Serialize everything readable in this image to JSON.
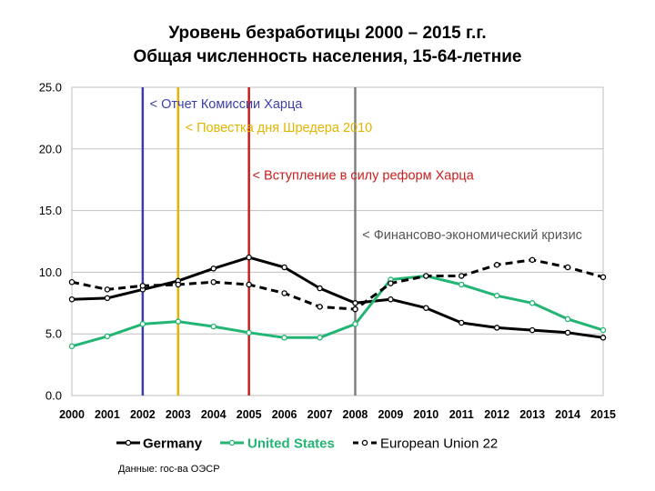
{
  "title_line1": "Уровень безработицы 2000 – 2015 г.г.",
  "title_line2": "Общая  численность населения, 15-64-летние",
  "source": "Данные: гос-ва ОЭСР",
  "chart_data": {
    "type": "line",
    "x": [
      2000,
      2001,
      2002,
      2003,
      2004,
      2005,
      2006,
      2007,
      2008,
      2009,
      2010,
      2011,
      2012,
      2013,
      2014,
      2015
    ],
    "x_tick_labels": [
      "2000",
      "2001",
      "2002",
      "2003",
      "2004",
      "2005",
      "2006",
      "2007",
      "2008",
      "2009",
      "2010",
      "2011",
      "2012",
      "2013",
      "2014",
      "2015"
    ],
    "y_tick_labels": [
      "0.0",
      "5.0",
      "10.0",
      "15.0",
      "20.0",
      "25.0"
    ],
    "y_ticks": [
      0,
      5,
      10,
      15,
      20,
      25
    ],
    "ylim": [
      0,
      25
    ],
    "grid": true,
    "legend_position": "bottom",
    "series": [
      {
        "name": "Germany",
        "color": "#000000",
        "dash": "solid",
        "values": [
          7.8,
          7.9,
          8.6,
          9.3,
          10.3,
          11.2,
          10.4,
          8.7,
          7.5,
          7.8,
          7.1,
          5.9,
          5.5,
          5.3,
          5.1,
          4.7
        ]
      },
      {
        "name": "United States",
        "color": "#23b573",
        "dash": "solid",
        "values": [
          4.0,
          4.8,
          5.8,
          6.0,
          5.6,
          5.1,
          4.7,
          4.7,
          5.8,
          9.4,
          9.7,
          9.0,
          8.1,
          7.5,
          6.2,
          5.3
        ]
      },
      {
        "name": "European Union 22",
        "color": "#000000",
        "dash": "dashed",
        "values": [
          9.2,
          8.6,
          8.9,
          9.0,
          9.2,
          9.0,
          8.3,
          7.2,
          7.0,
          9.1,
          9.7,
          9.7,
          10.6,
          11.0,
          10.4,
          9.6
        ]
      }
    ],
    "markers": [
      {
        "year": 2002,
        "color": "#3b3fa8",
        "label": "< Отчет Комиссии Харца",
        "label_year": 2002.2,
        "label_y": 23.3
      },
      {
        "year": 2003,
        "color": "#e3b400",
        "label": "< Повестка дня Шредера 2010",
        "label_year": 3003.2,
        "label_y": 21.4
      },
      {
        "year": 2005,
        "color": "#c81e1e",
        "label": "< Вступление в силу реформ Харца",
        "label_year": 2005.1,
        "label_y": 17.5
      },
      {
        "year": 2008,
        "color": "#808080",
        "label": "< Финансово-экономический кризис",
        "label_year": 2008.2,
        "label_y": 12.7
      }
    ]
  }
}
